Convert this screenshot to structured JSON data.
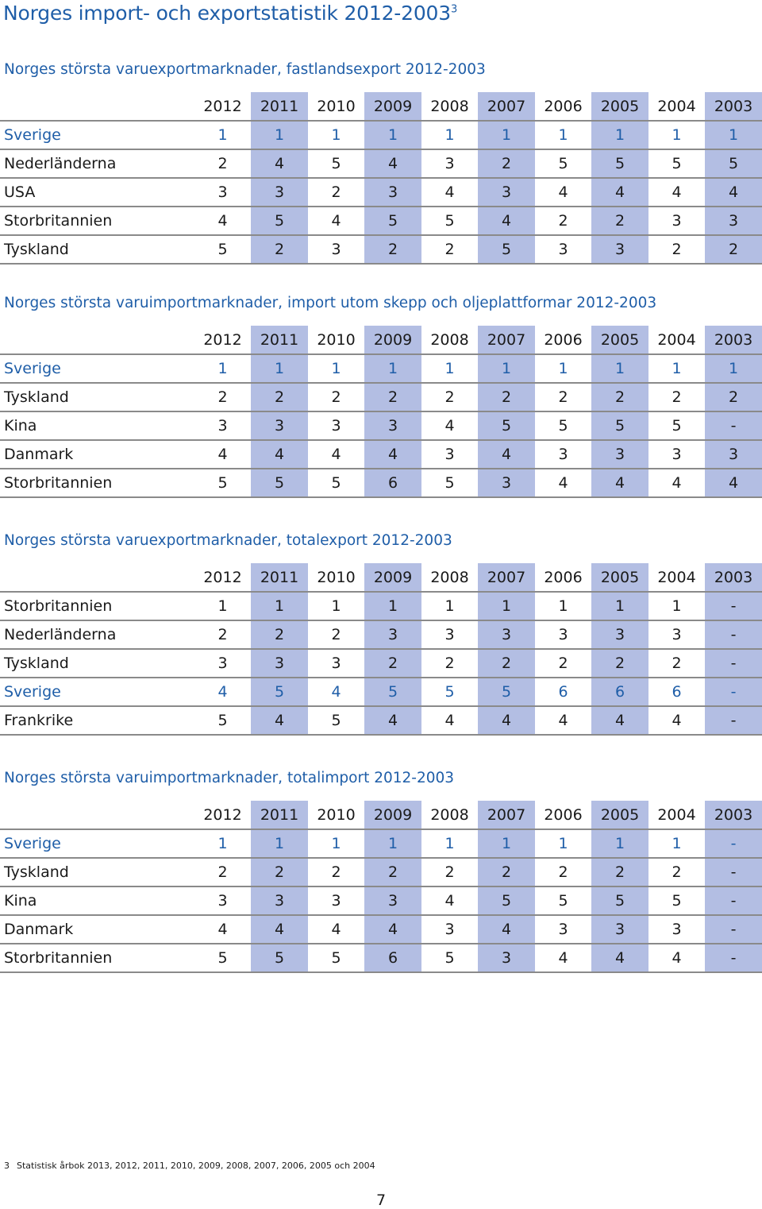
{
  "page": {
    "title": "Norges import- och exportstatistik 2012-2003",
    "title_footnote_ref": "3",
    "accent_color": "#1f5ea8",
    "shade_color": "#b3bee3"
  },
  "years": [
    "2012",
    "2011",
    "2010",
    "2009",
    "2008",
    "2007",
    "2006",
    "2005",
    "2004",
    "2003"
  ],
  "tables": [
    {
      "title": "Norges största varuexportmarknader, fastlandsexport 2012-2003",
      "rows": [
        {
          "label": "Sverige",
          "highlight": true,
          "values": [
            "1",
            "1",
            "1",
            "1",
            "1",
            "1",
            "1",
            "1",
            "1",
            "1"
          ]
        },
        {
          "label": "Nederländerna",
          "highlight": false,
          "values": [
            "2",
            "4",
            "5",
            "4",
            "3",
            "2",
            "5",
            "5",
            "5",
            "5"
          ]
        },
        {
          "label": "USA",
          "highlight": false,
          "values": [
            "3",
            "3",
            "2",
            "3",
            "4",
            "3",
            "4",
            "4",
            "4",
            "4"
          ]
        },
        {
          "label": "Storbritannien",
          "highlight": false,
          "values": [
            "4",
            "5",
            "4",
            "5",
            "5",
            "4",
            "2",
            "2",
            "3",
            "3"
          ]
        },
        {
          "label": "Tyskland",
          "highlight": false,
          "values": [
            "5",
            "2",
            "3",
            "2",
            "2",
            "5",
            "3",
            "3",
            "2",
            "2"
          ]
        }
      ]
    },
    {
      "title": "Norges största varuimportmarknader, import utom skepp och oljeplattformar 2012-2003",
      "rows": [
        {
          "label": "Sverige",
          "highlight": true,
          "values": [
            "1",
            "1",
            "1",
            "1",
            "1",
            "1",
            "1",
            "1",
            "1",
            "1"
          ]
        },
        {
          "label": "Tyskland",
          "highlight": false,
          "values": [
            "2",
            "2",
            "2",
            "2",
            "2",
            "2",
            "2",
            "2",
            "2",
            "2"
          ]
        },
        {
          "label": "Kina",
          "highlight": false,
          "values": [
            "3",
            "3",
            "3",
            "3",
            "4",
            "5",
            "5",
            "5",
            "5",
            "-"
          ]
        },
        {
          "label": "Danmark",
          "highlight": false,
          "values": [
            "4",
            "4",
            "4",
            "4",
            "3",
            "4",
            "3",
            "3",
            "3",
            "3"
          ]
        },
        {
          "label": "Storbritannien",
          "highlight": false,
          "values": [
            "5",
            "5",
            "5",
            "6",
            "5",
            "3",
            "4",
            "4",
            "4",
            "4"
          ]
        }
      ]
    },
    {
      "title": "Norges största varuexportmarknader, totalexport 2012-2003",
      "rows": [
        {
          "label": "Storbritannien",
          "highlight": false,
          "values": [
            "1",
            "1",
            "1",
            "1",
            "1",
            "1",
            "1",
            "1",
            "1",
            "-"
          ]
        },
        {
          "label": "Nederländerna",
          "highlight": false,
          "values": [
            "2",
            "2",
            "2",
            "3",
            "3",
            "3",
            "3",
            "3",
            "3",
            "-"
          ]
        },
        {
          "label": "Tyskland",
          "highlight": false,
          "values": [
            "3",
            "3",
            "3",
            "2",
            "2",
            "2",
            "2",
            "2",
            "2",
            "-"
          ]
        },
        {
          "label": "Sverige",
          "highlight": true,
          "values": [
            "4",
            "5",
            "4",
            "5",
            "5",
            "5",
            "6",
            "6",
            "6",
            "-"
          ]
        },
        {
          "label": "Frankrike",
          "highlight": false,
          "values": [
            "5",
            "4",
            "5",
            "4",
            "4",
            "4",
            "4",
            "4",
            "4",
            "-"
          ]
        }
      ]
    },
    {
      "title": "Norges största varuimportmarknader, totalimport 2012-2003",
      "rows": [
        {
          "label": "Sverige",
          "highlight": true,
          "values": [
            "1",
            "1",
            "1",
            "1",
            "1",
            "1",
            "1",
            "1",
            "1",
            "-"
          ]
        },
        {
          "label": "Tyskland",
          "highlight": false,
          "values": [
            "2",
            "2",
            "2",
            "2",
            "2",
            "2",
            "2",
            "2",
            "2",
            "-"
          ]
        },
        {
          "label": "Kina",
          "highlight": false,
          "values": [
            "3",
            "3",
            "3",
            "3",
            "4",
            "5",
            "5",
            "5",
            "5",
            "-"
          ]
        },
        {
          "label": "Danmark",
          "highlight": false,
          "values": [
            "4",
            "4",
            "4",
            "4",
            "3",
            "4",
            "3",
            "3",
            "3",
            "-"
          ]
        },
        {
          "label": "Storbritannien",
          "highlight": false,
          "values": [
            "5",
            "5",
            "5",
            "6",
            "5",
            "3",
            "4",
            "4",
            "4",
            "-"
          ]
        }
      ]
    }
  ],
  "footnote": {
    "number": "3",
    "text": "Statistisk årbok 2013, 2012, 2011, 2010, 2009, 2008, 2007, 2006, 2005 och 2004"
  },
  "page_number": "7"
}
